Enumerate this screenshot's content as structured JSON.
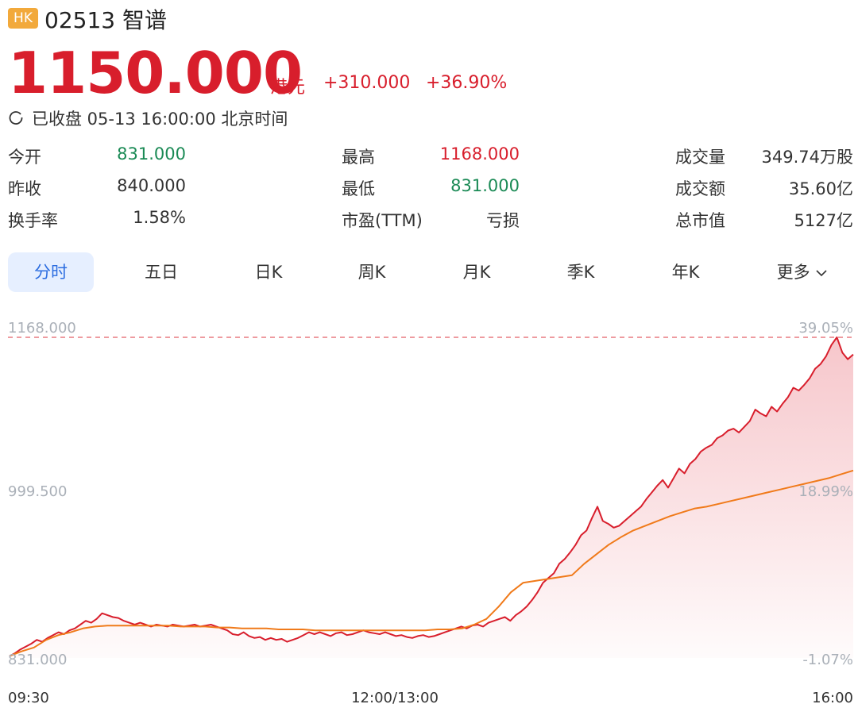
{
  "header": {
    "market_badge": "HK",
    "title": "02513 智谱",
    "price": "1150.000",
    "currency": "港元",
    "change": "+310.000",
    "change_pct": "+36.90%",
    "status": "已收盘 05-13 16:00:00 北京时间",
    "status_icon": "clock-icon"
  },
  "stats": {
    "open_label": "今开",
    "open_value": "831.000",
    "prev_close_label": "昨收",
    "prev_close_value": "840.000",
    "turnover_rate_label": "换手率",
    "turnover_rate_value": "1.58%",
    "high_label": "最高",
    "high_value": "1168.000",
    "low_label": "最低",
    "low_value": "831.000",
    "pe_label": "市盈(TTM)",
    "pe_value": "亏损",
    "volume_label": "成交量",
    "volume_value": "349.74万股",
    "amount_label": "成交额",
    "amount_value": "35.60亿",
    "market_cap_label": "总市值",
    "market_cap_value": "5127亿"
  },
  "tabs": [
    {
      "label": "分时",
      "active": true
    },
    {
      "label": "五日"
    },
    {
      "label": "日K"
    },
    {
      "label": "周K"
    },
    {
      "label": "月K"
    },
    {
      "label": "季K"
    },
    {
      "label": "年K"
    },
    {
      "label": "更多"
    }
  ],
  "colors": {
    "up": "#d81e2c",
    "down": "#1a8a55",
    "avg_line": "#f07a1a",
    "tab_active_bg": "#e6efff",
    "tab_active_text": "#2c6de0",
    "badge": "#f2a93b"
  },
  "chart_data": {
    "type": "line",
    "y_labels": [
      "1168.000",
      "999.500",
      "831.000"
    ],
    "pct_labels": [
      "39.05%",
      "18.99%",
      "-1.07%"
    ],
    "x_labels": [
      "09:30",
      "12:00/13:00",
      "16:00"
    ],
    "ylim": [
      831,
      1168
    ],
    "reference_line": 1168,
    "series": [
      {
        "values": [
          833,
          836,
          840,
          843,
          846,
          850,
          848,
          852,
          855,
          858,
          856,
          860,
          862,
          866,
          870,
          868,
          872,
          878,
          876,
          874,
          873,
          870,
          868,
          866,
          868,
          866,
          864,
          866,
          865,
          864,
          866,
          865,
          864,
          865,
          866,
          864,
          865,
          866,
          864,
          862,
          860,
          856,
          855,
          858,
          854,
          852,
          853,
          850,
          852,
          850,
          851,
          848,
          850,
          852,
          855,
          858,
          856,
          858,
          856,
          854,
          857,
          858,
          855,
          856,
          858,
          860,
          858,
          857,
          856,
          858,
          856,
          854,
          855,
          853,
          852,
          854,
          855,
          853,
          854,
          856,
          858,
          860,
          862,
          864,
          862,
          865,
          866,
          864,
          868,
          870,
          872,
          874,
          870,
          876,
          880,
          885,
          892,
          900,
          910,
          915,
          920,
          930,
          935,
          942,
          950,
          960,
          965,
          978,
          990,
          975,
          972,
          968,
          970,
          975,
          980,
          985,
          990,
          998,
          1005,
          1012,
          1018,
          1010,
          1020,
          1030,
          1025,
          1035,
          1040,
          1048,
          1052,
          1055,
          1062,
          1065,
          1070,
          1072,
          1068,
          1074,
          1080,
          1092,
          1088,
          1085,
          1095,
          1090,
          1098,
          1105,
          1115,
          1112,
          1118,
          1125,
          1135,
          1140,
          1148,
          1160,
          1168,
          1152,
          1145,
          1150
        ],
        "color": "#d81e2c"
      },
      {
        "values": [
          833,
          838,
          842,
          850,
          855,
          858,
          862,
          864,
          865,
          865,
          865,
          865,
          865,
          865,
          864,
          864,
          864,
          863,
          863,
          862,
          862,
          862,
          861,
          861,
          861,
          860,
          860,
          860,
          860,
          860,
          860,
          860,
          860,
          860,
          860,
          861,
          861,
          862,
          866,
          872,
          885,
          900,
          910,
          912,
          914,
          916,
          918,
          930,
          940,
          950,
          958,
          965,
          970,
          975,
          980,
          984,
          988,
          990,
          993,
          996,
          999,
          1002,
          1005,
          1008,
          1011,
          1014,
          1017,
          1020,
          1024,
          1028
        ],
        "color": "#f07a1a"
      }
    ]
  }
}
